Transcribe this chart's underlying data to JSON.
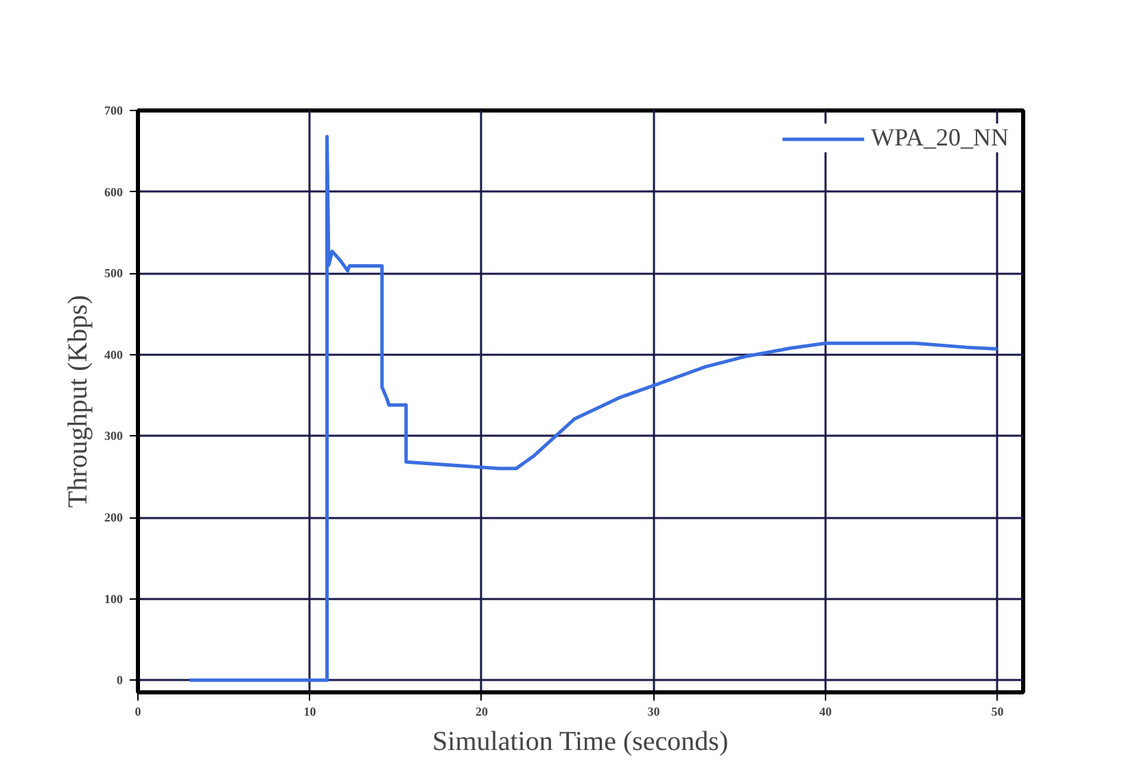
{
  "chart_data": {
    "type": "line",
    "xlabel": "Simulation Time (seconds)",
    "ylabel": "Throughput (Kbps)",
    "xlim": [
      0,
      51.5
    ],
    "ylim": [
      -15,
      700
    ],
    "xticks": [
      0,
      10,
      20,
      30,
      40,
      50
    ],
    "yticks": [
      0,
      100,
      200,
      300,
      400,
      500,
      600,
      700
    ],
    "grid": true,
    "legend": "top right",
    "line_style": "solid",
    "series": [
      {
        "name": "WPA_20_NN",
        "color": "#3a6ee0",
        "x": [
          3,
          10.7,
          11,
          11,
          11.1,
          11.3,
          11.8,
          12.2,
          12.3,
          14.2,
          14.2,
          14.5,
          14.6,
          15.6,
          15.6,
          17,
          19,
          21,
          22,
          23,
          25.4,
          28,
          30,
          33,
          35.4,
          38,
          40,
          45.2,
          48.2,
          50
        ],
        "values": [
          0,
          0,
          0,
          668,
          510,
          527,
          515,
          503,
          509,
          509,
          360,
          345,
          338,
          338,
          268,
          266,
          263,
          260,
          260,
          275,
          321,
          347,
          362,
          385,
          398,
          408,
          414,
          414,
          409,
          407
        ]
      }
    ]
  }
}
